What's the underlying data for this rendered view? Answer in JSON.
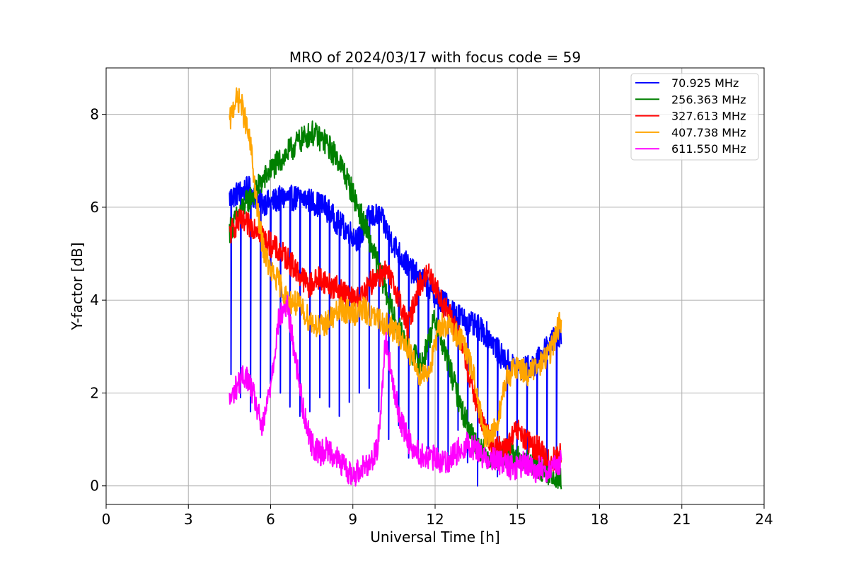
{
  "chart_data": {
    "type": "line",
    "title": "MRO of 2024/03/17 with focus code = 59",
    "xlabel": "Universal Time [h]",
    "ylabel": "Y-factor [dB]",
    "xlim": [
      0,
      24
    ],
    "ylim": [
      -0.4,
      9.0
    ],
    "xticks": [
      0,
      3,
      6,
      9,
      12,
      15,
      18,
      21,
      24
    ],
    "yticks": [
      0,
      2,
      4,
      6,
      8
    ],
    "grid": true,
    "legend_position": "top-right",
    "series": [
      {
        "name": "70.925 MHz",
        "color": "#0000ff",
        "x": [
          4.5,
          4.8,
          5.2,
          5.6,
          6.0,
          6.4,
          6.8,
          7.2,
          7.6,
          8.0,
          8.4,
          8.8,
          9.2,
          9.6,
          10.0,
          10.4,
          10.8,
          11.2,
          11.6,
          12.0,
          12.4,
          12.8,
          13.2,
          13.6,
          14.0,
          14.4,
          14.8,
          15.2,
          15.6,
          16.0,
          16.4,
          16.6
        ],
        "y": [
          6.2,
          6.3,
          6.4,
          6.1,
          6.1,
          6.2,
          6.2,
          6.2,
          6.1,
          6.0,
          5.7,
          5.5,
          5.3,
          5.8,
          5.8,
          5.3,
          4.9,
          4.6,
          4.4,
          4.1,
          3.9,
          3.7,
          3.5,
          3.4,
          3.2,
          2.8,
          2.6,
          2.5,
          2.6,
          2.9,
          3.2,
          3.3
        ],
        "dropouts": {
          "start": 4.55,
          "end": 16.6,
          "step": 0.36,
          "low": [
            2.4,
            1.9,
            1.6,
            1.9,
            2.2,
            2.0,
            1.7,
            1.5,
            1.6,
            1.9,
            1.7,
            1.5,
            1.8,
            2.0,
            2.1,
            1.6,
            1.0,
            1.3,
            0.6,
            0.7,
            0.8,
            0.7,
            0.3,
            1.2,
            0.5,
            0.0,
            0.9,
            0.2,
            0.5,
            0.4,
            0.4,
            0.3,
            0.3,
            0.3
          ]
        }
      },
      {
        "name": "256.363 MHz",
        "color": "#008000",
        "x": [
          4.5,
          5.0,
          5.5,
          6.0,
          6.5,
          7.0,
          7.5,
          8.0,
          8.5,
          9.0,
          9.5,
          10.0,
          10.5,
          11.0,
          11.5,
          12.0,
          12.5,
          13.0,
          13.5,
          14.0,
          14.5,
          15.0,
          15.5,
          16.0,
          16.5,
          16.6
        ],
        "y": [
          5.5,
          6.0,
          6.4,
          6.8,
          7.1,
          7.4,
          7.6,
          7.4,
          7.0,
          6.3,
          5.5,
          4.6,
          3.6,
          3.0,
          2.6,
          3.6,
          2.6,
          1.6,
          0.9,
          0.6,
          0.7,
          0.6,
          0.5,
          0.3,
          0.2,
          0.1
        ]
      },
      {
        "name": "327.613 MHz",
        "color": "#ff0000",
        "x": [
          4.5,
          4.8,
          5.2,
          5.5,
          5.8,
          6.2,
          6.6,
          7.0,
          7.4,
          7.8,
          8.2,
          8.6,
          9.0,
          9.4,
          9.8,
          10.2,
          10.6,
          11.0,
          11.4,
          11.8,
          12.2,
          12.6,
          13.0,
          13.4,
          13.8,
          14.2,
          14.6,
          15.0,
          15.4,
          15.8,
          16.2,
          16.6
        ],
        "y": [
          5.4,
          5.7,
          5.6,
          5.6,
          5.3,
          5.1,
          4.9,
          4.6,
          4.3,
          4.5,
          4.3,
          4.2,
          4.0,
          4.1,
          4.5,
          4.6,
          4.2,
          3.4,
          4.3,
          4.6,
          4.0,
          3.6,
          3.0,
          2.0,
          1.2,
          0.8,
          0.8,
          1.2,
          0.9,
          0.8,
          0.5,
          0.7
        ]
      },
      {
        "name": "407.738 MHz",
        "color": "#ffa500",
        "x": [
          4.5,
          4.7,
          4.9,
          5.1,
          5.3,
          5.5,
          5.7,
          6.0,
          6.3,
          6.6,
          7.0,
          7.4,
          7.8,
          8.2,
          8.6,
          9.0,
          9.4,
          9.8,
          10.2,
          10.6,
          11.0,
          11.4,
          11.8,
          12.2,
          12.6,
          13.0,
          13.4,
          13.8,
          14.2,
          14.6,
          15.0,
          15.4,
          15.8,
          16.2,
          16.6
        ],
        "y": [
          7.8,
          8.3,
          8.3,
          7.8,
          7.2,
          6.0,
          5.2,
          4.6,
          4.4,
          4.0,
          3.9,
          3.6,
          3.4,
          3.6,
          3.8,
          3.7,
          3.8,
          3.6,
          3.5,
          3.3,
          3.0,
          2.4,
          2.5,
          3.5,
          3.4,
          3.1,
          2.4,
          1.0,
          1.2,
          2.3,
          2.6,
          2.4,
          2.6,
          2.9,
          3.6
        ]
      },
      {
        "name": "611.550 MHz",
        "color": "#ff00ff",
        "x": [
          4.5,
          4.8,
          5.1,
          5.4,
          5.7,
          6.0,
          6.3,
          6.6,
          6.9,
          7.2,
          7.5,
          7.8,
          8.1,
          8.4,
          8.7,
          9.0,
          9.3,
          9.6,
          9.9,
          10.2,
          10.5,
          10.8,
          11.1,
          11.4,
          11.7,
          12.0,
          12.3,
          12.6,
          12.9,
          13.2,
          13.5,
          13.8,
          14.1,
          14.4,
          14.7,
          15.0,
          15.3,
          15.6,
          15.9,
          16.2,
          16.6
        ],
        "y": [
          1.8,
          2.2,
          2.4,
          1.9,
          1.2,
          2.2,
          3.6,
          3.9,
          2.8,
          1.6,
          0.9,
          0.7,
          0.8,
          0.6,
          0.4,
          0.2,
          0.4,
          0.5,
          0.8,
          3.2,
          2.0,
          1.3,
          0.9,
          0.7,
          0.6,
          0.6,
          0.5,
          0.6,
          0.8,
          0.9,
          0.8,
          0.6,
          0.6,
          0.5,
          0.4,
          0.4,
          0.5,
          0.3,
          0.4,
          0.3,
          0.5
        ]
      }
    ]
  }
}
